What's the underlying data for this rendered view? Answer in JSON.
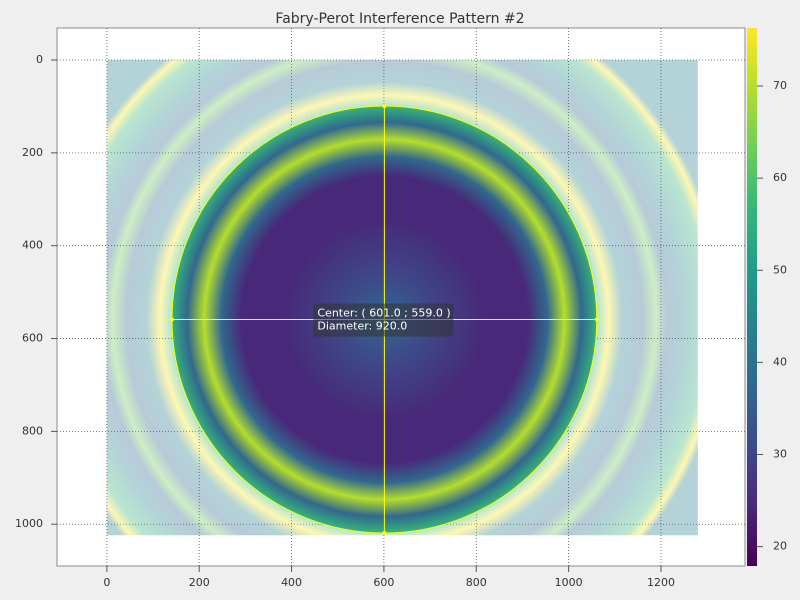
{
  "chart_data": {
    "type": "image",
    "title": "Fabry-Perot Interference Pattern #2",
    "xlim": [
      -108,
      1382
    ],
    "ylim": [
      1090,
      -69
    ],
    "xticks": [
      0,
      200,
      400,
      600,
      800,
      1000,
      1200
    ],
    "yticks": [
      0,
      200,
      400,
      600,
      800,
      1000
    ],
    "grid": true,
    "colormap": "viridis",
    "extent": [
      0,
      1280,
      0,
      1024
    ],
    "colorbar": {
      "clim": [
        17.9,
        76.3
      ],
      "ticks": [
        20,
        30,
        40,
        50,
        60,
        70
      ]
    },
    "shape": {
      "center": [
        601,
        559
      ],
      "diameter": 920,
      "color": "#ffff00",
      "labels": [
        "Center: ( 601.0 ; 559.0 )",
        "Diameter: 920.0"
      ]
    }
  }
}
